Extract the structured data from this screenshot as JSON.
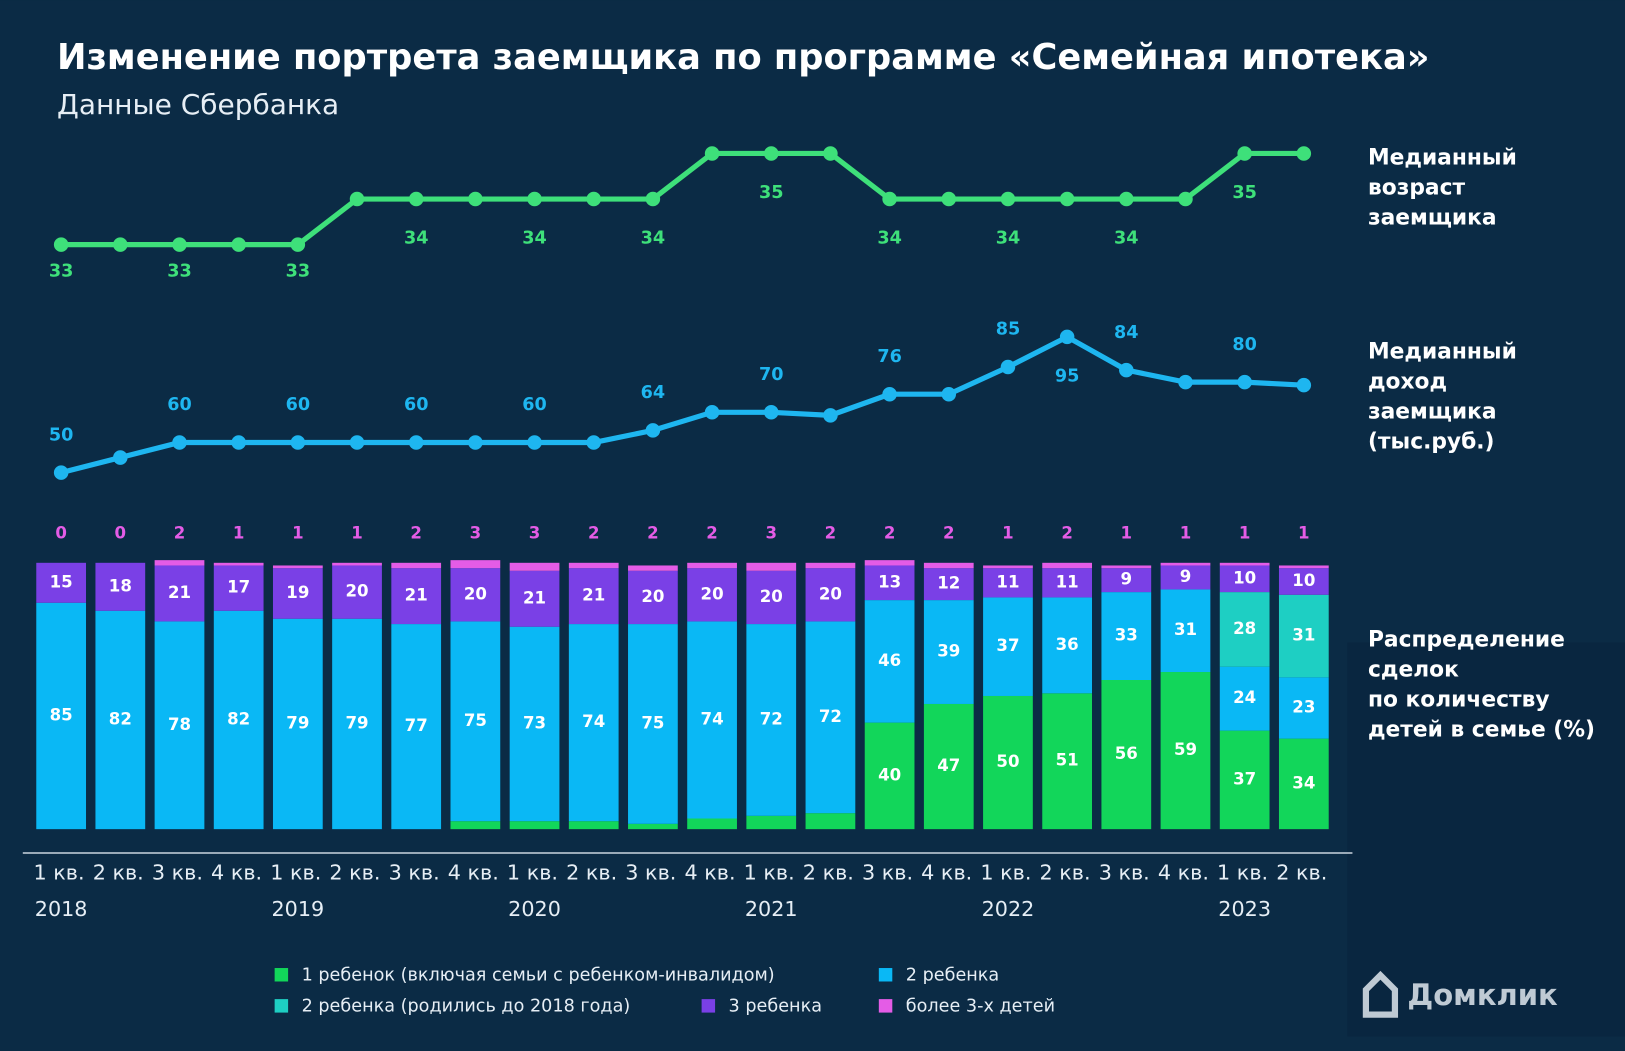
{
  "title": "Изменение портрета заемщика по программе «Семейная ипотека»",
  "subtitle": "Данные Сбербанка",
  "logo": "Домклик",
  "chart_data": [
    {
      "type": "line",
      "label": [
        "Медианный",
        "возраст",
        "заемщика"
      ],
      "color": "#3ee07a",
      "values": [
        33,
        33,
        33,
        33,
        33,
        34,
        34,
        34,
        34,
        34,
        34,
        35,
        35,
        35,
        34,
        34,
        34,
        34,
        34,
        34,
        35,
        35
      ],
      "value_labels": [
        "33",
        null,
        "33",
        null,
        "33",
        null,
        "34",
        null,
        "34",
        null,
        "34",
        null,
        "35",
        null,
        "34",
        null,
        "34",
        null,
        "34",
        null,
        "35",
        null
      ]
    },
    {
      "type": "line",
      "label": [
        "Медианный",
        "доход",
        "заемщика",
        "(тыс.руб.)"
      ],
      "color": "#1eb6f0",
      "values": [
        50,
        55,
        60,
        60,
        60,
        60,
        60,
        60,
        60,
        60,
        64,
        70,
        70,
        69,
        76,
        76,
        85,
        95,
        84,
        80,
        80,
        79
      ],
      "value_labels": [
        "50",
        null,
        "60",
        null,
        "60",
        null,
        "60",
        null,
        "60",
        null,
        "64",
        null,
        "70",
        null,
        "76",
        null,
        "85",
        "95",
        "84",
        null,
        "80",
        null
      ]
    },
    {
      "type": "bar",
      "stacked": true,
      "label": [
        "Распределение",
        "сделок",
        "по количеству",
        "детей в семье (%)"
      ],
      "categories": [
        "1 кв.",
        "2 кв.",
        "3 кв.",
        "4 кв.",
        "1 кв.",
        "2 кв.",
        "3 кв.",
        "4 кв.",
        "1 кв.",
        "2 кв.",
        "3 кв.",
        "4 кв.",
        "1 кв.",
        "2 кв.",
        "3 кв.",
        "4 кв.",
        "1 кв.",
        "2 кв.",
        "3 кв.",
        "4 кв.",
        "1 кв.",
        "2 кв."
      ],
      "years": [
        "2018",
        null,
        null,
        null,
        "2019",
        null,
        null,
        null,
        "2020",
        null,
        null,
        null,
        "2021",
        null,
        null,
        null,
        "2022",
        null,
        null,
        null,
        "2023",
        null
      ],
      "ylim": [
        0,
        100
      ],
      "series": [
        {
          "name": "1 ребенок (включая семьи с ребенком-инвалидом)",
          "color": "#12d65a",
          "values": [
            null,
            null,
            null,
            null,
            null,
            null,
            null,
            3,
            3,
            3,
            2,
            4,
            5,
            6,
            40,
            47,
            50,
            51,
            56,
            59,
            37,
            34
          ]
        },
        {
          "name": "2 ребенка",
          "color": "#0ab8f5",
          "values": [
            85,
            82,
            78,
            82,
            79,
            79,
            77,
            75,
            73,
            74,
            75,
            74,
            72,
            72,
            46,
            39,
            37,
            36,
            33,
            31,
            24,
            23
          ]
        },
        {
          "name": "2 ребенка (родились до 2018 года)",
          "color": "#1ecfc3",
          "values": [
            null,
            null,
            null,
            null,
            null,
            null,
            null,
            null,
            null,
            null,
            null,
            null,
            null,
            null,
            null,
            null,
            null,
            null,
            null,
            null,
            28,
            31
          ]
        },
        {
          "name": "3 ребенка",
          "color": "#7a40e6",
          "values": [
            15,
            18,
            21,
            17,
            19,
            20,
            21,
            20,
            21,
            21,
            20,
            20,
            20,
            20,
            13,
            12,
            11,
            11,
            9,
            9,
            10,
            10
          ]
        },
        {
          "name": "более 3-х детей",
          "color": "#e45ce6",
          "values": [
            0,
            0,
            2,
            1,
            1,
            1,
            2,
            3,
            3,
            2,
            2,
            2,
            3,
            2,
            2,
            2,
            1,
            2,
            1,
            1,
            1,
            1
          ]
        }
      ]
    }
  ]
}
